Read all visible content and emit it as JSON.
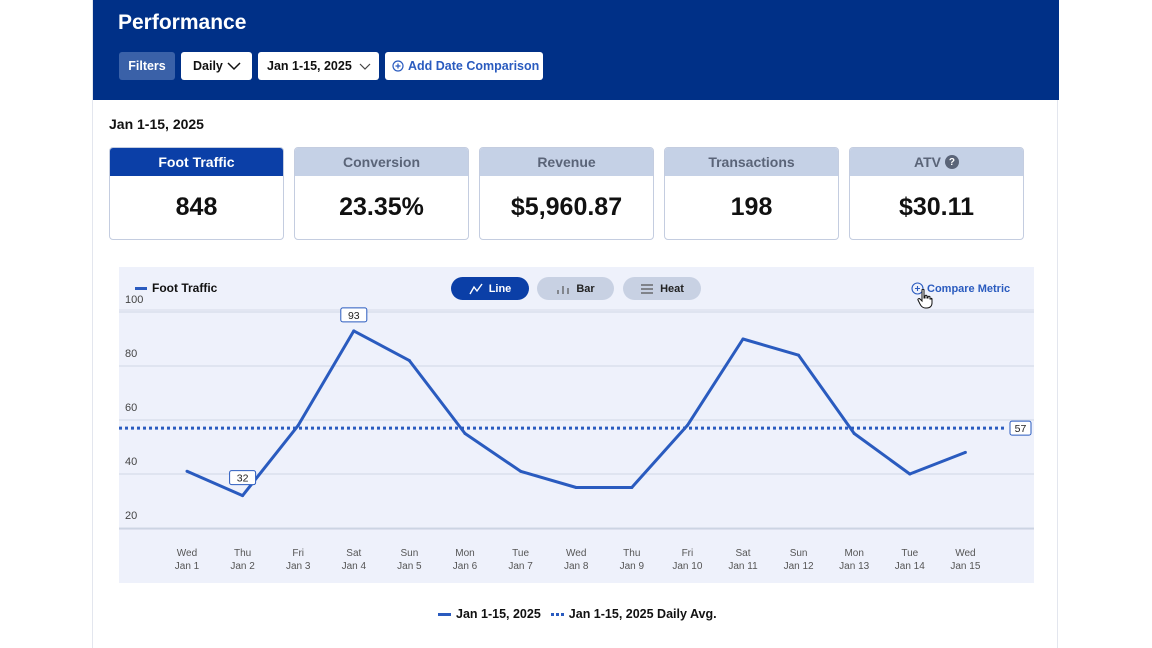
{
  "header": {
    "title": "Performance",
    "filters_label": "Filters",
    "interval_label": "Daily",
    "date_range_label": "Jan 1-15, 2025",
    "add_comparison_label": "Add Date Comparison"
  },
  "range_label": "Jan 1-15, 2025",
  "metrics": [
    {
      "label": "Foot Traffic",
      "value": "848"
    },
    {
      "label": "Conversion",
      "value": "23.35%"
    },
    {
      "label": "Revenue",
      "value": "$5,960.87"
    },
    {
      "label": "Transactions",
      "value": "198"
    },
    {
      "label": "ATV",
      "value": "$30.11"
    }
  ],
  "chart_controls": {
    "series_legend": "Foot Traffic",
    "line_label": "Line",
    "bar_label": "Bar",
    "heat_label": "Heat",
    "compare_label": "Compare Metric"
  },
  "bottom_legend": {
    "series_label": "Jan 1-15, 2025",
    "avg_label": "Jan 1-15, 2025 Daily Avg."
  },
  "colors": {
    "header_bg": "#003087",
    "accent": "#0b3fa7",
    "line": "#2a5bbf",
    "chart_bg": "#eef1fb"
  },
  "chart_data": {
    "type": "line",
    "x_days": [
      "Wed",
      "Thu",
      "Fri",
      "Sat",
      "Sun",
      "Mon",
      "Tue",
      "Wed",
      "Thu",
      "Fri",
      "Sat",
      "Sun",
      "Mon",
      "Tue",
      "Wed"
    ],
    "x_dates": [
      "Jan 1",
      "Jan 2",
      "Jan 3",
      "Jan 4",
      "Jan 5",
      "Jan 6",
      "Jan 7",
      "Jan 8",
      "Jan 9",
      "Jan 10",
      "Jan 11",
      "Jan 12",
      "Jan 13",
      "Jan 14",
      "Jan 15"
    ],
    "series": [
      {
        "name": "Jan 1-15, 2025",
        "values": [
          41,
          32,
          58,
          93,
          82,
          55,
          41,
          35,
          35,
          58,
          90,
          84,
          55,
          40,
          48
        ]
      },
      {
        "name": "Jan 1-15, 2025 Daily Avg.",
        "values": [
          57,
          57,
          57,
          57,
          57,
          57,
          57,
          57,
          57,
          57,
          57,
          57,
          57,
          57,
          57
        ]
      }
    ],
    "yticks": [
      20,
      40,
      60,
      80,
      100
    ],
    "ylim": [
      15,
      100
    ],
    "point_labels": [
      {
        "index": 1,
        "text": "32"
      },
      {
        "index": 3,
        "text": "93"
      }
    ],
    "avg_label": "57",
    "grid": true
  }
}
